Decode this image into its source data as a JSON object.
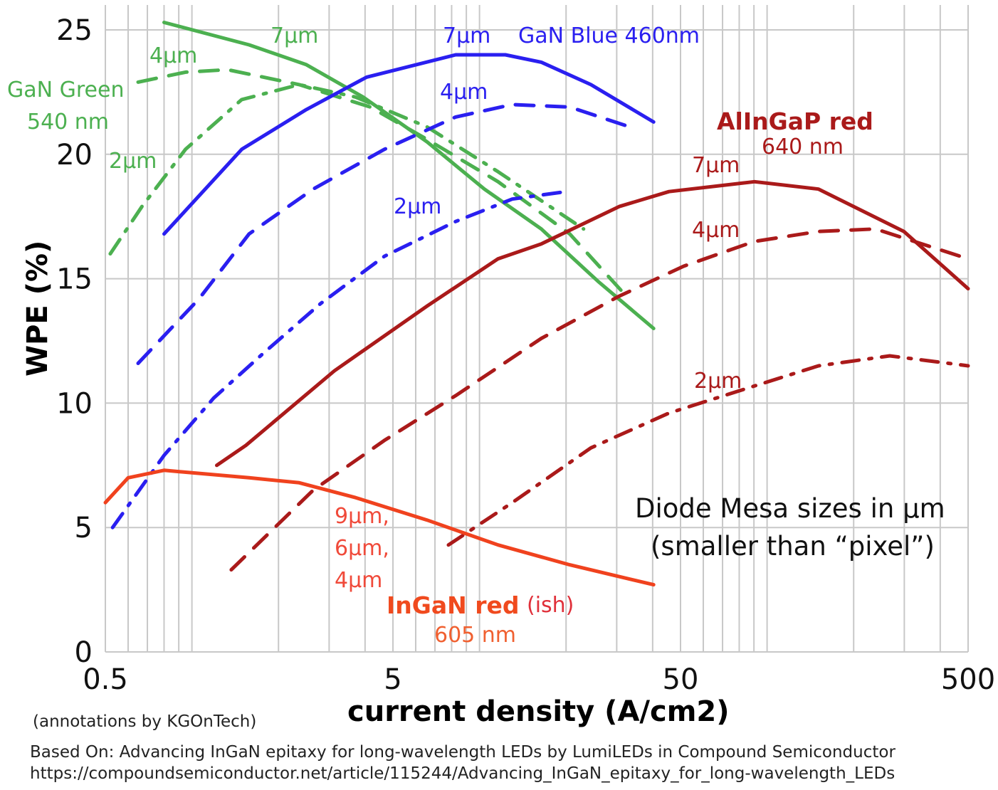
{
  "chart_data": {
    "type": "line",
    "xlabel": "current density (A/cm2)",
    "ylabel": "WPE (%)",
    "xscale": "log",
    "xlim": [
      0.5,
      500
    ],
    "ylim": [
      0,
      26
    ],
    "xticks": [
      "0.5",
      "5",
      "50",
      "500"
    ],
    "xtick_values": [
      0.5,
      5,
      50,
      500
    ],
    "yticks": [
      "0",
      "5",
      "10",
      "15",
      "20",
      "25"
    ],
    "ytick_values": [
      0,
      5,
      10,
      15,
      20,
      25
    ],
    "grid": true,
    "colors": {
      "green": "#4cb050",
      "blue": "#2a1ff0",
      "darkred": "#aa1a1a",
      "orange": "#f0421e"
    },
    "series": [
      {
        "name": "GaN Green 7µm",
        "color": "green",
        "style": "solid",
        "x": [
          0.8,
          1.58,
          2.5,
          3.94,
          6.57,
          10.4,
          16.4,
          25.8,
          40.3
        ],
        "y": [
          25.3,
          24.4,
          23.6,
          22.3,
          20.5,
          18.6,
          17.0,
          14.9,
          13.0
        ]
      },
      {
        "name": "GaN Green 4µm",
        "color": "green",
        "style": "dash",
        "x": [
          0.65,
          0.95,
          1.33,
          2.36,
          4.17,
          6.57,
          11.6,
          20.6,
          32.4
        ],
        "y": [
          22.9,
          23.3,
          23.4,
          22.8,
          21.9,
          20.6,
          18.9,
          16.8,
          14.3
        ]
      },
      {
        "name": "GaN Green 2µm",
        "color": "green",
        "style": "dashdot",
        "x": [
          0.52,
          0.67,
          0.95,
          1.49,
          2.36,
          3.71,
          6.57,
          11.6,
          23.0
        ],
        "y": [
          16.0,
          17.9,
          20.2,
          22.2,
          22.8,
          22.3,
          21.1,
          19.3,
          17.0
        ]
      },
      {
        "name": "GaN Blue 7µm",
        "color": "blue",
        "style": "solid",
        "x": [
          0.8,
          1.49,
          2.5,
          4.05,
          8.26,
          12.3,
          16.4,
          24.4,
          40.3
        ],
        "y": [
          16.8,
          20.2,
          21.8,
          23.1,
          24.0,
          24.0,
          23.7,
          22.8,
          21.3
        ]
      },
      {
        "name": "GaN Blue 4µm",
        "color": "blue",
        "style": "dash",
        "x": [
          0.65,
          1.06,
          1.58,
          2.64,
          4.67,
          8.26,
          13.0,
          20.6,
          33.3
        ],
        "y": [
          11.6,
          14.2,
          16.8,
          18.6,
          20.2,
          21.5,
          22.0,
          21.9,
          21.1
        ]
      },
      {
        "name": "GaN Blue 2µm",
        "color": "blue",
        "style": "dashdot",
        "x": [
          0.53,
          0.8,
          1.19,
          1.77,
          2.8,
          4.67,
          8.26,
          13.0,
          20.0
        ],
        "y": [
          5.0,
          7.9,
          10.2,
          12.0,
          14.0,
          15.9,
          17.3,
          18.2,
          18.5
        ]
      },
      {
        "name": "AlInGaP red 7µm",
        "color": "darkred",
        "style": "solid",
        "x": [
          1.22,
          1.54,
          3.13,
          6.57,
          11.6,
          16.4,
          30.6,
          45.6,
          90.4,
          151,
          299,
          500
        ],
        "y": [
          7.5,
          8.3,
          11.3,
          13.9,
          15.8,
          16.4,
          17.9,
          18.5,
          18.9,
          18.6,
          16.9,
          14.6
        ]
      },
      {
        "name": "AlInGaP red 4µm",
        "color": "darkred",
        "style": "dash",
        "x": [
          1.37,
          2.64,
          4.67,
          8.26,
          16.4,
          30.6,
          51.2,
          90.4,
          151,
          238,
          500
        ],
        "y": [
          3.3,
          6.5,
          8.5,
          10.3,
          12.6,
          14.3,
          15.5,
          16.5,
          16.9,
          17.0,
          15.8
        ]
      },
      {
        "name": "AlInGaP red 2µm",
        "color": "darkred",
        "style": "dashdot",
        "x": [
          7.8,
          13.0,
          24.4,
          45.6,
          85.5,
          151,
          267,
          500
        ],
        "y": [
          4.3,
          6.0,
          8.2,
          9.6,
          10.6,
          11.5,
          11.9,
          11.5
        ]
      },
      {
        "name": "InGaN red 9/6/4µm",
        "color": "orange",
        "style": "solid",
        "x": [
          0.5,
          0.6,
          0.8,
          1.58,
          2.36,
          3.71,
          6.57,
          11.6,
          20.6,
          40.3
        ],
        "y": [
          6.0,
          7.0,
          7.3,
          7.0,
          6.8,
          6.2,
          5.3,
          4.3,
          3.5,
          2.7
        ]
      }
    ],
    "annotations": {
      "green_7": "7µm",
      "green_4": "4µm",
      "green_name1": "GaN Green",
      "green_name2": "540 nm",
      "green_2": "2µm",
      "blue_7": "7µm",
      "blue_name": "GaN Blue 460nm",
      "blue_4": "4µm",
      "blue_2": "2µm",
      "red_name1": "AlInGaP red",
      "red_name2": "640 nm",
      "red_7": "7µm",
      "red_4": "4µm",
      "red_2": "2µm",
      "ingan_sizes1": "9µm,",
      "ingan_sizes2": "6µm,",
      "ingan_sizes3": "4µm",
      "ingan_name": "InGaN red",
      "ingan_ish": "(ish)",
      "ingan_nm": "605 nm",
      "mesa1": "Diode Mesa  sizes in µm",
      "mesa2": "(smaller than “pixel”)"
    }
  },
  "footer": {
    "credit": "(annotations by KGOnTech)",
    "source": "Based On: Advancing InGaN epitaxy for long-wavelength LEDs by LumiLEDs in Compound Semiconductor",
    "url": "https://compoundsemiconductor.net/article/115244/Advancing_InGaN_epitaxy_for_long-wavelength_LEDs"
  }
}
